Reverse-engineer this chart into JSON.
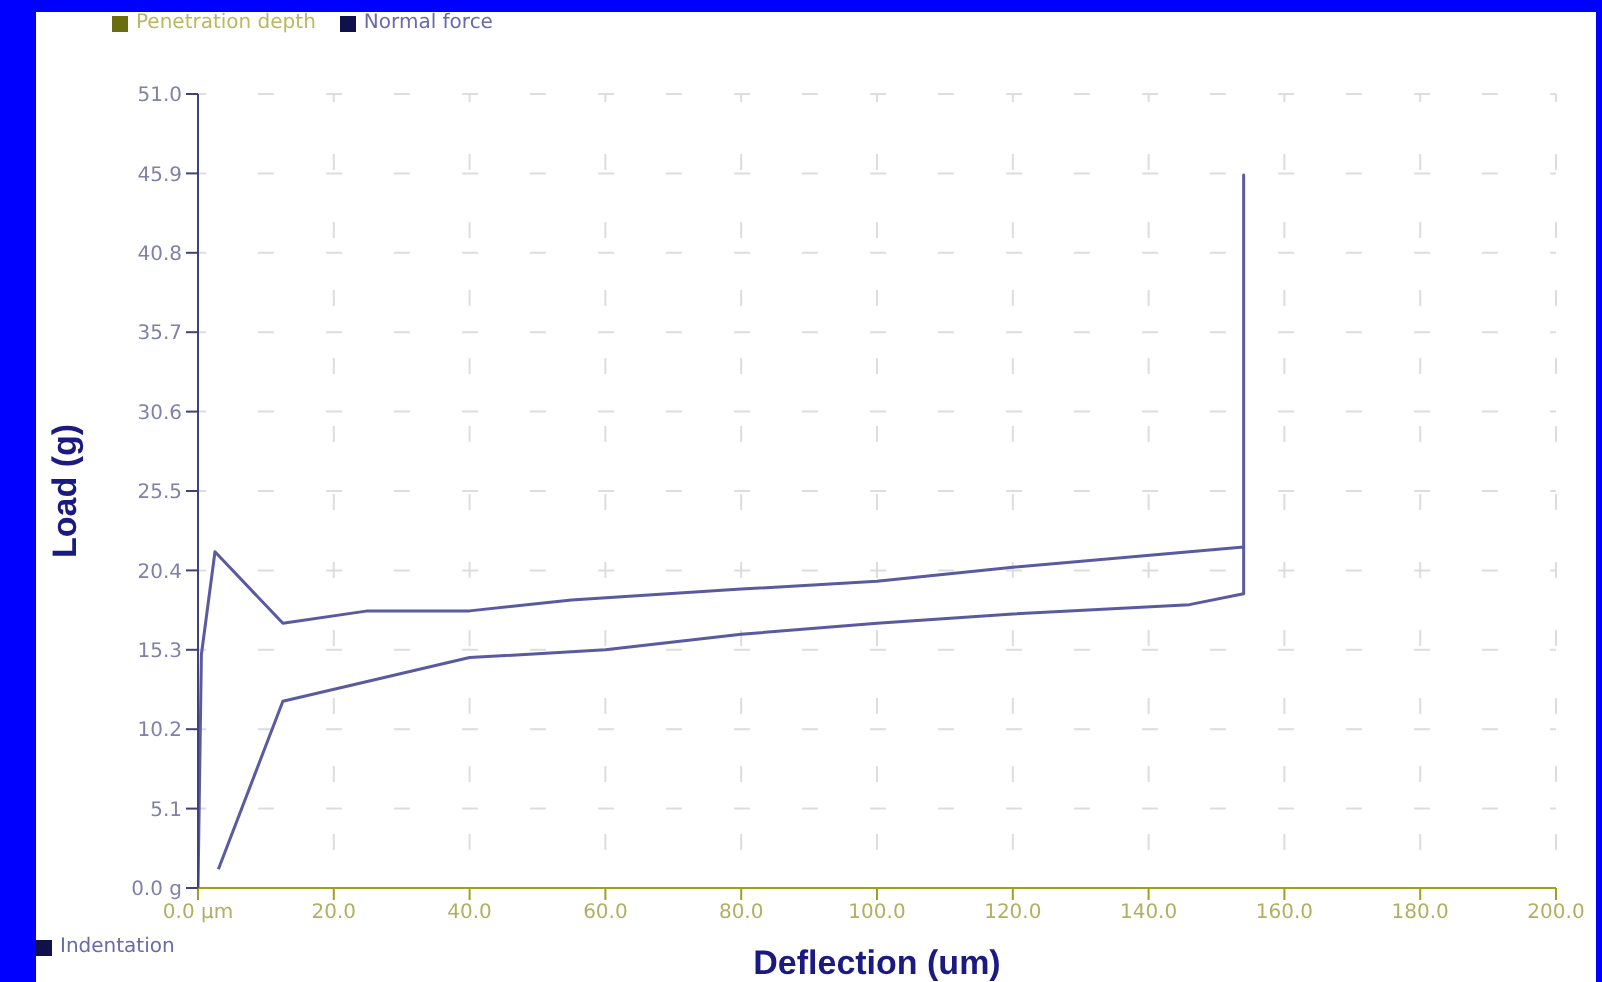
{
  "chart_data": {
    "type": "line",
    "xlabel": "Deflection (um)",
    "ylabel": "Load (g)",
    "annotations": [
      "Penetration depth",
      "Indentation"
    ],
    "x": [
      0,
      0.5,
      2.5,
      12.5,
      25,
      40,
      55,
      80,
      100,
      120,
      154,
      154,
      154,
      146,
      120,
      100,
      80,
      60,
      40,
      12.5,
      3
    ],
    "series": [
      {
        "name": "Normal force",
        "color": "#5a5aa0",
        "values": [
          0,
          15,
          21.6,
          17,
          17.8,
          17.8,
          18.5,
          19.2,
          19.7,
          20.6,
          21.9,
          45.8,
          18.9,
          18.2,
          17.6,
          17,
          16.3,
          15.3,
          14.8,
          12,
          1.2
        ]
      }
    ],
    "xlim": [
      0,
      200
    ],
    "xticks": [
      {
        "value": 0,
        "label": "0.0 µm"
      },
      {
        "value": 20,
        "label": "20.0"
      },
      {
        "value": 40,
        "label": "40.0"
      },
      {
        "value": 60,
        "label": "60.0"
      },
      {
        "value": 80,
        "label": "80.0"
      },
      {
        "value": 100,
        "label": "100.0"
      },
      {
        "value": 120,
        "label": "120.0"
      },
      {
        "value": 140,
        "label": "140.0"
      },
      {
        "value": 160,
        "label": "160.0"
      },
      {
        "value": 180,
        "label": "180.0"
      },
      {
        "value": 200,
        "label": "200.0"
      }
    ],
    "ylim": [
      0,
      51
    ],
    "yticks": [
      {
        "value": 0,
        "label": "0.0 g"
      },
      {
        "value": 5.1,
        "label": "5.1"
      },
      {
        "value": 10.2,
        "label": "10.2"
      },
      {
        "value": 15.3,
        "label": "15.3"
      },
      {
        "value": 20.4,
        "label": "20.4"
      },
      {
        "value": 25.5,
        "label": "25.5"
      },
      {
        "value": 30.6,
        "label": "30.6"
      },
      {
        "value": 35.7,
        "label": "35.7"
      },
      {
        "value": 40.8,
        "label": "40.8"
      },
      {
        "value": 45.9,
        "label": "45.9"
      },
      {
        "value": 51,
        "label": "51.0"
      }
    ],
    "grid": true,
    "legend": "top left",
    "marker": "none",
    "line_style": "solid"
  }
}
